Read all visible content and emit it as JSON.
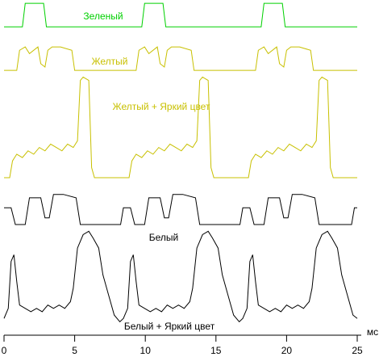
{
  "chart_data": {
    "type": "line",
    "x_label": "мс",
    "xlim": [
      0,
      25
    ],
    "xticks": [
      0,
      5,
      10,
      15,
      20,
      25
    ],
    "ylim": [
      0,
      100
    ],
    "series": [
      {
        "name": "Зеленый",
        "color": "#00d000",
        "x": [
          0,
          1.3,
          1.5,
          2.8,
          3.0,
          9.75,
          9.95,
          11.25,
          11.45,
          18.2,
          18.4,
          19.7,
          19.9,
          25
        ],
        "values": [
          92,
          92,
          99,
          99,
          92,
          92,
          99,
          99,
          92,
          92,
          99,
          99,
          92,
          92
        ]
      },
      {
        "name": "Желтый",
        "color": "#c8c000",
        "x": [
          0,
          0.9,
          1.1,
          1.5,
          1.8,
          2.4,
          2.6,
          2.9,
          3.1,
          3.4,
          4.0,
          4.8,
          5.0,
          5.2,
          8.45,
          9.35,
          9.55,
          9.95,
          10.25,
          10.85,
          11.05,
          11.35,
          11.55,
          11.85,
          12.45,
          13.25,
          13.45,
          13.65,
          16.9,
          17.8,
          18.0,
          18.4,
          18.7,
          19.3,
          19.5,
          19.8,
          20.0,
          20.3,
          20.9,
          21.7,
          21.9,
          22.1,
          25
        ],
        "values": [
          79,
          79,
          85,
          86,
          84,
          86,
          81,
          80,
          85,
          86,
          86,
          85,
          79,
          79,
          79,
          79,
          85,
          86,
          84,
          86,
          81,
          80,
          85,
          86,
          86,
          85,
          79,
          79,
          79,
          79,
          85,
          86,
          84,
          86,
          81,
          80,
          85,
          86,
          86,
          85,
          79,
          79,
          79
        ]
      },
      {
        "name": "Желтый + Яркий цвет",
        "color": "#c8c000",
        "x": [
          0,
          0.4,
          0.6,
          0.9,
          1.3,
          1.7,
          2.1,
          2.5,
          2.9,
          3.3,
          3.7,
          4.1,
          4.5,
          4.9,
          5.2,
          5.4,
          5.6,
          6.0,
          6.2,
          6.4,
          8.45,
          8.85,
          9.05,
          9.35,
          9.75,
          10.15,
          10.55,
          10.95,
          11.35,
          11.75,
          12.15,
          12.55,
          12.95,
          13.35,
          13.65,
          13.85,
          14.05,
          14.45,
          14.65,
          14.85,
          16.9,
          17.3,
          17.5,
          17.8,
          18.2,
          18.6,
          19.0,
          19.4,
          19.8,
          20.2,
          20.6,
          21.0,
          21.4,
          21.8,
          22.1,
          22.3,
          22.5,
          22.9,
          23.1,
          23.3,
          25
        ],
        "values": [
          47,
          47,
          52,
          54,
          53,
          55,
          54,
          56,
          55,
          57,
          56,
          55,
          57,
          56,
          58,
          76,
          77,
          76,
          50,
          47,
          47,
          47,
          52,
          54,
          53,
          55,
          54,
          56,
          55,
          57,
          56,
          55,
          57,
          56,
          58,
          76,
          77,
          76,
          50,
          47,
          47,
          47,
          52,
          54,
          53,
          55,
          54,
          56,
          55,
          57,
          56,
          55,
          57,
          56,
          58,
          76,
          77,
          76,
          50,
          47,
          47
        ]
      },
      {
        "name": "Белый",
        "color": "#000000",
        "x": [
          0,
          0.5,
          0.8,
          1.5,
          1.8,
          2.6,
          2.9,
          3.2,
          3.5,
          4.2,
          5.1,
          5.4,
          8.25,
          8.45,
          8.95,
          9.25,
          9.95,
          10.25,
          11.05,
          11.35,
          11.65,
          11.95,
          12.65,
          13.55,
          13.85,
          16.7,
          16.9,
          17.4,
          17.7,
          18.4,
          18.7,
          19.5,
          19.8,
          20.1,
          20.4,
          21.1,
          22.0,
          22.3,
          24.6,
          24.8,
          25
        ],
        "values": [
          38,
          38,
          33,
          33,
          41,
          41,
          35,
          35,
          42,
          42,
          41,
          33,
          33,
          38,
          38,
          33,
          33,
          41,
          41,
          35,
          35,
          42,
          42,
          41,
          33,
          33,
          38,
          38,
          33,
          33,
          41,
          41,
          35,
          35,
          42,
          42,
          41,
          33,
          33,
          38,
          38
        ]
      },
      {
        "name": "Белый + Яркий цвет",
        "color": "#000000",
        "x": [
          0,
          0.3,
          0.5,
          0.7,
          0.9,
          1.1,
          1.5,
          1.9,
          2.3,
          2.7,
          3.1,
          3.5,
          3.9,
          4.3,
          4.7,
          4.9,
          5.2,
          5.6,
          6.0,
          6.3,
          6.7,
          7.0,
          7.4,
          7.8,
          8.2,
          8.45,
          8.75,
          8.95,
          9.15,
          9.35,
          9.55,
          9.95,
          10.35,
          10.75,
          11.15,
          11.55,
          11.95,
          12.35,
          12.75,
          13.15,
          13.35,
          13.65,
          14.05,
          14.45,
          14.75,
          15.15,
          15.45,
          15.85,
          16.25,
          16.65,
          16.9,
          17.2,
          17.4,
          17.6,
          17.8,
          18.0,
          18.4,
          18.8,
          19.2,
          19.6,
          20.0,
          20.4,
          20.8,
          21.2,
          21.6,
          21.8,
          22.1,
          22.5,
          22.9,
          23.2,
          23.6,
          23.9,
          24.3,
          24.7,
          25
        ],
        "values": [
          5,
          8,
          22,
          24,
          16,
          9,
          8,
          7,
          8,
          7,
          9,
          8,
          9,
          8,
          10,
          14,
          26,
          30,
          31,
          29,
          26,
          18,
          12,
          6,
          4,
          5,
          8,
          22,
          24,
          16,
          9,
          8,
          7,
          8,
          7,
          9,
          8,
          9,
          8,
          10,
          14,
          26,
          30,
          31,
          29,
          26,
          18,
          12,
          6,
          4,
          5,
          8,
          22,
          24,
          16,
          9,
          8,
          7,
          8,
          7,
          9,
          8,
          9,
          8,
          10,
          14,
          26,
          30,
          31,
          29,
          26,
          18,
          12,
          6,
          5
        ]
      }
    ]
  }
}
